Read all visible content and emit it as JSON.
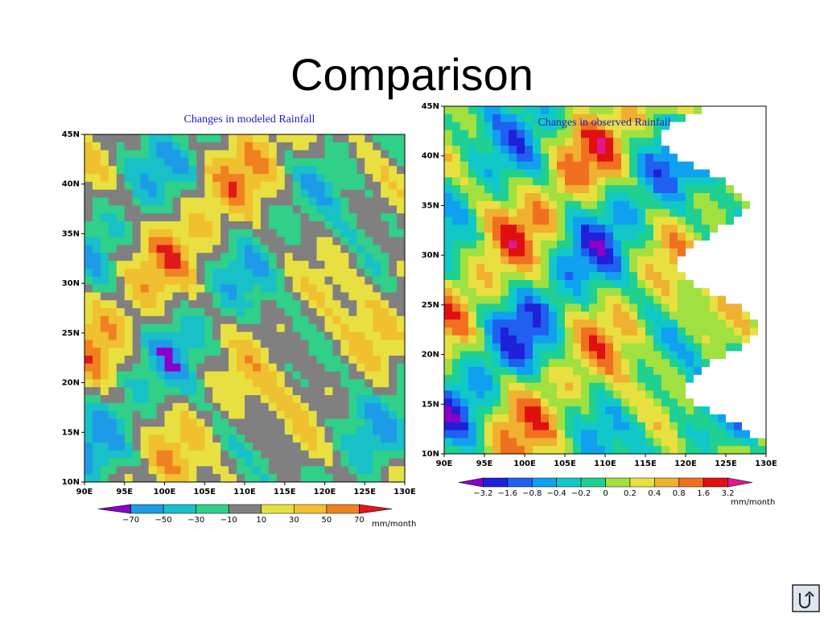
{
  "title": "Comparison",
  "maps": [
    {
      "title": "Changes in modeled Rainfall",
      "lat_labels": [
        "45N",
        "40N",
        "35N",
        "30N",
        "25N",
        "20N",
        "15N",
        "10N"
      ],
      "lon_labels": [
        "90E",
        "95E",
        "100E",
        "105E",
        "110E",
        "115E",
        "120E",
        "125E",
        "130E"
      ],
      "colorbar": {
        "labels": [
          "−70",
          "−50",
          "−30",
          "−10",
          "10",
          "30",
          "50",
          "70"
        ],
        "colors": [
          "#8a00c8",
          "#1e9be8",
          "#18c0c8",
          "#30d088",
          "#808080",
          "#e8e040",
          "#f0c030",
          "#f08020",
          "#e01818"
        ],
        "unit": "mm/month"
      }
    },
    {
      "title": "Changes in observed Rainfall",
      "lat_labels": [
        "45N",
        "40N",
        "35N",
        "30N",
        "25N",
        "20N",
        "15N",
        "10N"
      ],
      "lon_labels": [
        "90E",
        "95E",
        "100E",
        "105E",
        "110E",
        "115E",
        "120E",
        "125E",
        "130E"
      ],
      "colorbar": {
        "labels": [
          "−3.2",
          "−1.6",
          "−0.8",
          "−0.4",
          "−0.2",
          "0",
          "0.2",
          "0.4",
          "0.8",
          "1.6",
          "3.2"
        ],
        "colors": [
          "#8a00c8",
          "#2020d8",
          "#2060f0",
          "#10a0f0",
          "#10c8c8",
          "#20d090",
          "#a0e040",
          "#e8e040",
          "#f0b030",
          "#f07020",
          "#e01010",
          "#e01890"
        ],
        "unit": "mm/month"
      }
    }
  ]
}
